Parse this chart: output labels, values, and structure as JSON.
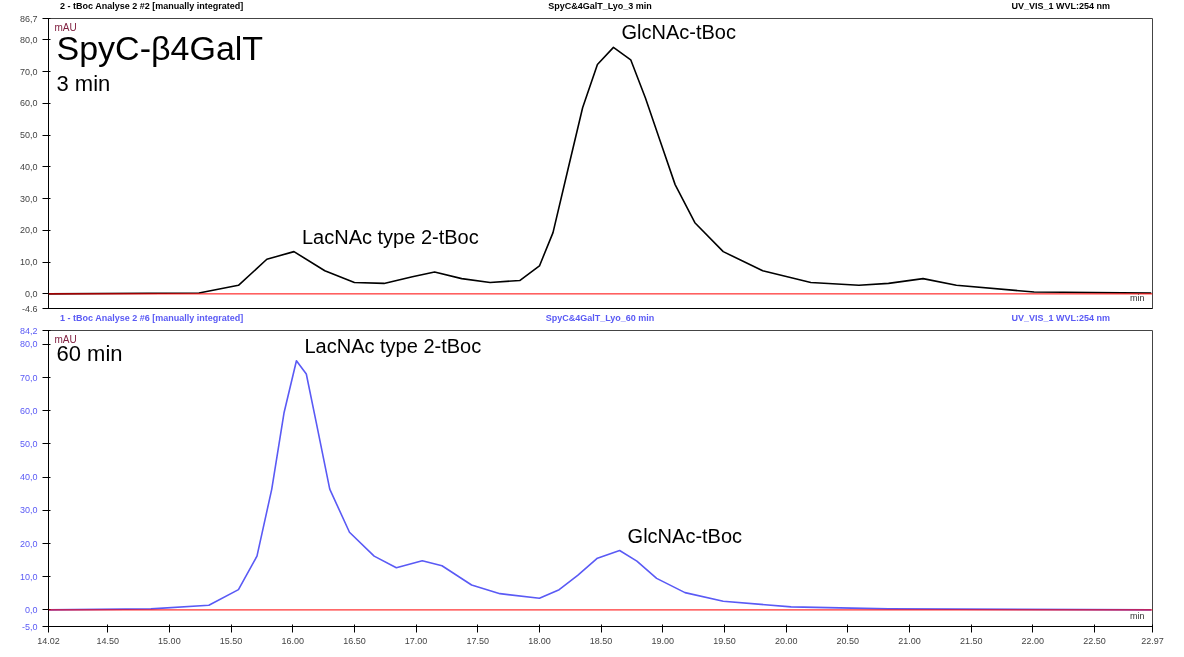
{
  "chart_data": [
    {
      "type": "line",
      "title": "2 - tBoc Analyse 2 #2 [manually integrated]",
      "subtitle": "SpyC&4GalT_Lyo_3 min",
      "ylabel": "mAU",
      "xlabel": "min",
      "annotations": [
        "UV_VIS_1 WVL:254 nm",
        "SpyC-β4GalT",
        "3 min",
        {
          "text": "LacNAc type 2-tBoc",
          "x": 16.01,
          "y": 13.3
        },
        {
          "text": "GlcNAc-tBoc",
          "x": 18.6,
          "y": 77.6
        }
      ],
      "x": [
        14.02,
        15.24,
        15.56,
        15.79,
        16.01,
        16.26,
        16.5,
        16.74,
        16.97,
        17.15,
        17.37,
        17.6,
        17.84,
        18.0,
        18.11,
        18.23,
        18.35,
        18.47,
        18.6,
        18.74,
        18.86,
        18.98,
        19.1,
        19.26,
        19.49,
        19.81,
        20.2,
        20.59,
        20.83,
        21.11,
        21.38,
        22.01,
        22.96
      ],
      "series": [
        {
          "color": "#000000",
          "values": [
            0,
            0.3,
            2.7,
            10.9,
            13.3,
            7.3,
            3.6,
            3.3,
            5.4,
            6.9,
            4.8,
            3.6,
            4.2,
            8.8,
            19.3,
            39.0,
            58.6,
            72.2,
            77.6,
            73.7,
            61.6,
            48.0,
            34.4,
            22.4,
            13.3,
            7.3,
            3.6,
            2.7,
            3.3,
            4.8,
            2.7,
            0.6,
            0.3
          ]
        }
      ],
      "xlim": [
        14.02,
        22.97
      ],
      "ylim": [
        -4.6,
        86.7
      ],
      "yticks": [
        {
          "value": -4.6,
          "label": "-4,6"
        },
        {
          "value": 0,
          "label": "0,0"
        },
        {
          "value": 10,
          "label": "10,0"
        },
        {
          "value": 20,
          "label": "20,0"
        },
        {
          "value": 30,
          "label": "30,0"
        },
        {
          "value": 40,
          "label": "40,0"
        },
        {
          "value": 50,
          "label": "50,0"
        },
        {
          "value": 60,
          "label": "60,0"
        },
        {
          "value": 70,
          "label": "70,0"
        },
        {
          "value": 80,
          "label": "80,0"
        },
        {
          "value": 86.7,
          "label": "86,7"
        }
      ],
      "ref_lines": [
        {
          "axis": "y",
          "value": 0,
          "color": "#ff0000"
        }
      ],
      "tick_labels": "y",
      "grid": false
    },
    {
      "type": "line",
      "title": "1 - tBoc Analyse 2 #6 [manually integrated]",
      "subtitle": "SpyC&4GalT_Lyo_60 min",
      "ylabel": "mAU",
      "xlabel": "min",
      "annotations": [
        "UV_VIS_1 WVL:254 nm",
        "60 min",
        {
          "text": "LacNAc type 2-tBoc",
          "x": 16.03,
          "y": 75.1
        },
        {
          "text": "GlcNAc-tBoc",
          "x": 18.65,
          "y": 17.9
        }
      ],
      "x": [
        14.02,
        14.85,
        15.32,
        15.56,
        15.71,
        15.83,
        15.93,
        16.03,
        16.11,
        16.19,
        16.3,
        16.46,
        16.66,
        16.84,
        17.05,
        17.21,
        17.45,
        17.68,
        18.0,
        18.16,
        18.31,
        18.47,
        18.65,
        18.79,
        18.95,
        19.18,
        19.49,
        20.04,
        20.83,
        22.96
      ],
      "series": [
        {
          "color": "#5a5af5",
          "values": [
            0,
            0.3,
            1.4,
            6.1,
            16.2,
            36.4,
            59.5,
            75.1,
            71.1,
            56.6,
            36.4,
            23.4,
            16.2,
            12.7,
            14.8,
            13.3,
            7.5,
            4.9,
            3.5,
            6.1,
            10.4,
            15.6,
            17.9,
            14.7,
            9.5,
            5.2,
            2.6,
            0.9,
            0.3,
            0
          ]
        }
      ],
      "xlim": [
        14.02,
        22.97
      ],
      "xticks": [
        {
          "value": 14.02,
          "label": "14.02"
        },
        {
          "value": 14.5,
          "label": "14.50"
        },
        {
          "value": 15,
          "label": "15.00"
        },
        {
          "value": 15.5,
          "label": "15.50"
        },
        {
          "value": 16,
          "label": "16.00"
        },
        {
          "value": 16.5,
          "label": "16.50"
        },
        {
          "value": 17,
          "label": "17.00"
        },
        {
          "value": 17.5,
          "label": "17.50"
        },
        {
          "value": 18,
          "label": "18.00"
        },
        {
          "value": 18.5,
          "label": "18.50"
        },
        {
          "value": 19,
          "label": "19.00"
        },
        {
          "value": 19.5,
          "label": "19.50"
        },
        {
          "value": 20,
          "label": "20.00"
        },
        {
          "value": 20.5,
          "label": "20.50"
        },
        {
          "value": 21,
          "label": "21.00"
        },
        {
          "value": 21.5,
          "label": "21.50"
        },
        {
          "value": 22,
          "label": "22.00"
        },
        {
          "value": 22.5,
          "label": "22.50"
        },
        {
          "value": 22.97,
          "label": "22.97"
        }
      ],
      "ylim": [
        -5.0,
        84.2
      ],
      "yticks": [
        {
          "value": -5.0,
          "label": "-5,0"
        },
        {
          "value": 0,
          "label": "0,0"
        },
        {
          "value": 10,
          "label": "10,0"
        },
        {
          "value": 20,
          "label": "20,0"
        },
        {
          "value": 30,
          "label": "30,0"
        },
        {
          "value": 40,
          "label": "40,0"
        },
        {
          "value": 50,
          "label": "50,0"
        },
        {
          "value": 60,
          "label": "60,0"
        },
        {
          "value": 70,
          "label": "70,0"
        },
        {
          "value": 80,
          "label": "80,0"
        },
        {
          "value": 84.2,
          "label": "84,2"
        }
      ],
      "ref_lines": [
        {
          "axis": "y",
          "value": 0,
          "color": "#ff0000"
        }
      ],
      "grid": false
    }
  ]
}
